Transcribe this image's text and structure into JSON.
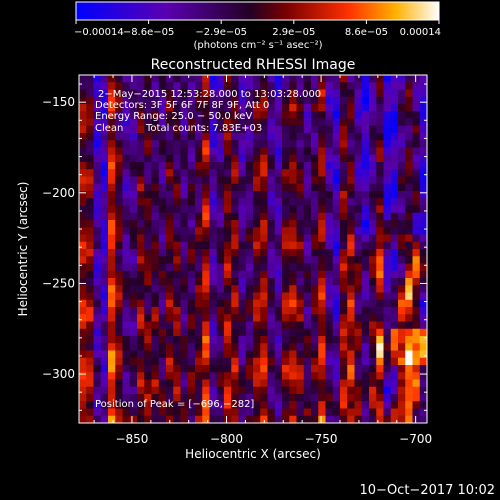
{
  "chart_data": {
    "type": "heatmap",
    "title": "Reconstructed RHESSI Image",
    "xlabel": "Heliocentric X (arcsec)",
    "ylabel": "Heliocentric Y (arcsec)",
    "xlim": [
      -878,
      -694
    ],
    "ylim": [
      -327,
      -135
    ],
    "x_ticks": [
      -850,
      -800,
      -750,
      -700
    ],
    "x_tick_labels": [
      "−850",
      "−800",
      "−750",
      "−700"
    ],
    "y_ticks": [
      -150,
      -200,
      -250,
      -300
    ],
    "y_tick_labels": [
      "−150",
      "−200",
      "−250",
      "−300"
    ],
    "colorbar": {
      "tick_labels": [
        "−0.00014",
        "−8.6e−05",
        "−2.9e−05",
        "2.9e−05",
        "8.6e−05",
        "0.00014"
      ],
      "unit_label": "(photons cm⁻² s⁻¹ asec⁻²)",
      "colors": [
        "#0000ff",
        "#5a00b0",
        "#230025",
        "#7a0000",
        "#ff3000",
        "#ffb000",
        "#ffffff"
      ]
    },
    "annotations": [
      "2−May−2015 12:53:28.000 to 13:03:28.000",
      "Detectors: 3F 5F 6F 7F 8F 9F, Att 0",
      "Energy Range: 25.0 − 50.0 keV",
      "Clean",
      "Total counts: 7.83E+03",
      "Position of Peak = [−696,−282]"
    ],
    "peak": [
      -696,
      -282
    ]
  },
  "timestamp": "10−Oct−2017 10:02"
}
